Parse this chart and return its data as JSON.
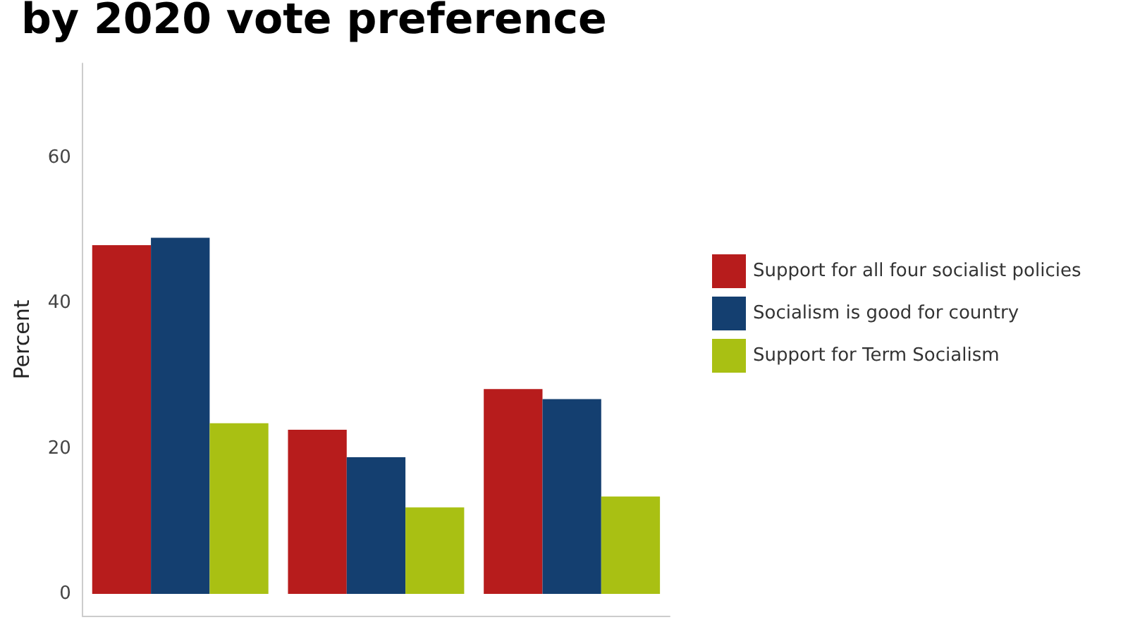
{
  "chart_data": {
    "type": "bar",
    "title": "by 2020 vote preference",
    "ylabel": "Percent",
    "categories": [
      null,
      null,
      null
    ],
    "series": [
      {
        "name": "Support for all four socialist policies",
        "color": "#b71c1c",
        "values": [
          48,
          22.6,
          28.2
        ]
      },
      {
        "name": "Socialism is good for country",
        "color": "#143f70",
        "values": [
          49,
          18.8,
          26.8
        ]
      },
      {
        "name": "Support for Term Socialism",
        "color": "#a9c013",
        "values": [
          23.5,
          11.9,
          13.4
        ]
      }
    ],
    "ylim": [
      -3,
      73
    ],
    "yticks": [
      0,
      20,
      40,
      60
    ],
    "grid": false,
    "legend": "right"
  }
}
